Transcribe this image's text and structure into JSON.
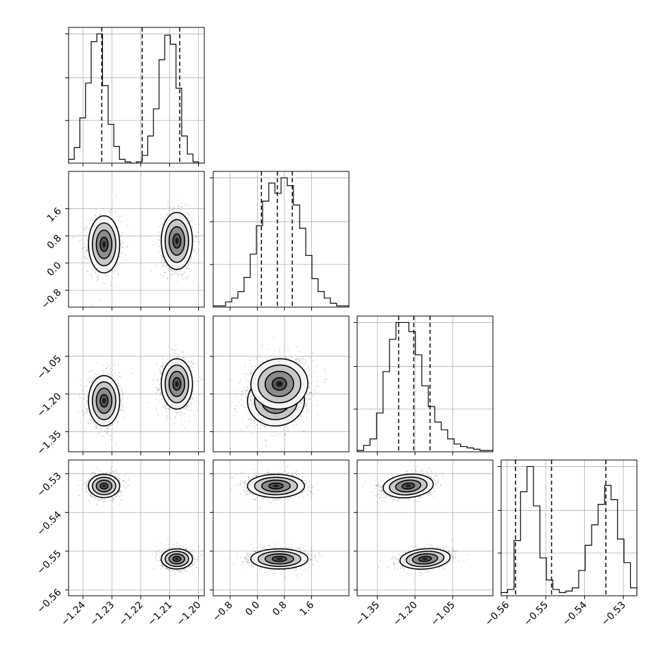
{
  "chart_data": {
    "type": "corner",
    "parameters": [
      {
        "range": [
          -1.245,
          -1.198
        ],
        "ticks": [
          -1.24,
          -1.23,
          -1.22,
          -1.21,
          -1.2
        ],
        "tick_labels": [
          "−1.24",
          "−1.23",
          "−1.22",
          "−1.21",
          "−1.20"
        ],
        "quantiles": [
          -1.2335,
          -1.2195,
          -1.2065
        ],
        "histogram": [
          0.03,
          0.12,
          0.35,
          0.62,
          0.94,
          1.0,
          0.6,
          0.3,
          0.13,
          0.03,
          0.01,
          0.0,
          0.01,
          0.06,
          0.21,
          0.42,
          0.8,
          0.99,
          0.92,
          0.58,
          0.21,
          0.07,
          0.01,
          0.0
        ]
      },
      {
        "range": [
          -1.3,
          2.7
        ],
        "ticks": [
          -0.8,
          0.0,
          0.8,
          1.6
        ],
        "tick_labels": [
          "−0.8",
          "0.0",
          "0.8",
          "1.6"
        ],
        "quantiles": [
          0.12,
          0.59,
          1.03
        ],
        "histogram": [
          0.01,
          0.01,
          0.04,
          0.07,
          0.12,
          0.23,
          0.41,
          0.63,
          0.82,
          0.96,
          0.88,
          1.0,
          0.94,
          0.79,
          0.61,
          0.4,
          0.22,
          0.12,
          0.07,
          0.03,
          0.01,
          0.01
        ]
      },
      {
        "range": [
          -1.43,
          -0.89
        ],
        "ticks": [
          -1.35,
          -1.2,
          -1.05
        ],
        "tick_labels": [
          "−1.35",
          "−1.20",
          "−1.05"
        ],
        "quantiles": [
          -1.265,
          -1.205,
          -1.14
        ],
        "histogram": [
          0.01,
          0.05,
          0.1,
          0.3,
          0.62,
          0.87,
          1.0,
          1.0,
          0.93,
          0.75,
          0.51,
          0.35,
          0.23,
          0.17,
          0.1,
          0.06,
          0.04,
          0.03,
          0.02,
          0.01,
          0.01
        ]
      },
      {
        "range": [
          -0.5615,
          -0.5265
        ],
        "ticks": [
          -0.56,
          -0.55,
          -0.54,
          -0.53
        ],
        "tick_labels": [
          "−0.56",
          "−0.55",
          "−0.54",
          "−0.53"
        ],
        "quantiles": [
          -0.5578,
          -0.5485,
          -0.5345
        ],
        "histogram": [
          0.02,
          0.04,
          0.35,
          0.66,
          0.82,
          0.57,
          0.24,
          0.1,
          0.04,
          0.02,
          0.03,
          0.05,
          0.16,
          0.32,
          0.45,
          0.58,
          0.7,
          0.61,
          0.36,
          0.21,
          0.05
        ]
      }
    ],
    "clusters": [
      {
        "means": [
          -1.2327,
          0.55,
          -1.227,
          -0.5332
        ],
        "sds": [
          0.0027,
          0.42,
          0.05,
          0.0015
        ]
      },
      {
        "means": [
          -1.2075,
          0.65,
          -1.16,
          -0.552
        ],
        "sds": [
          0.0027,
          0.42,
          0.05,
          0.0013
        ]
      }
    ],
    "pair_correlations": {
      "2-1": 0.15,
      "3-1": 0.0,
      "3-2": 0.35
    },
    "contour_levels_sigma": [
      0.5,
      1.0,
      1.5,
      2.0
    ],
    "grid": true,
    "xlabels": [],
    "ylabels": []
  }
}
